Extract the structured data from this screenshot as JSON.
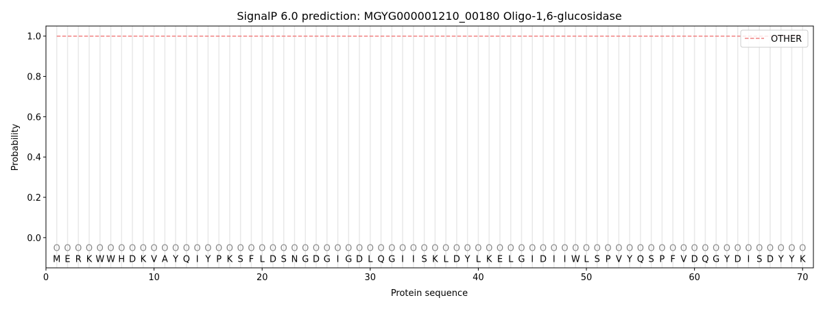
{
  "chart_data": {
    "type": "line",
    "title": "SignalP 6.0 prediction: MGYG000001210_00180 Oligo-1,6-glucosidase",
    "xlabel": "Protein sequence",
    "ylabel": "Probability",
    "xlim": [
      0,
      71
    ],
    "ylim": [
      -0.15,
      1.05
    ],
    "xticks": [
      0,
      10,
      20,
      30,
      40,
      50,
      60,
      70
    ],
    "yticks": [
      0.0,
      0.2,
      0.4,
      0.6,
      0.8,
      1.0
    ],
    "sequence": "MERKWWHDKVAYQIYPKSFLDSNGDGIGDLQGIISKLDYLKELGIDIIWLSPVYQSPFVDQGYDISDYYK",
    "predicted_label": "O",
    "series": [
      {
        "name": "OTHER",
        "color": "#f08080",
        "style": "dashed",
        "x_start": 1,
        "x_end": 70,
        "value": 1.0
      }
    ],
    "legend": {
      "placement": "top-right",
      "entries": [
        "OTHER"
      ]
    },
    "grid": "vertical lines at each residue"
  }
}
